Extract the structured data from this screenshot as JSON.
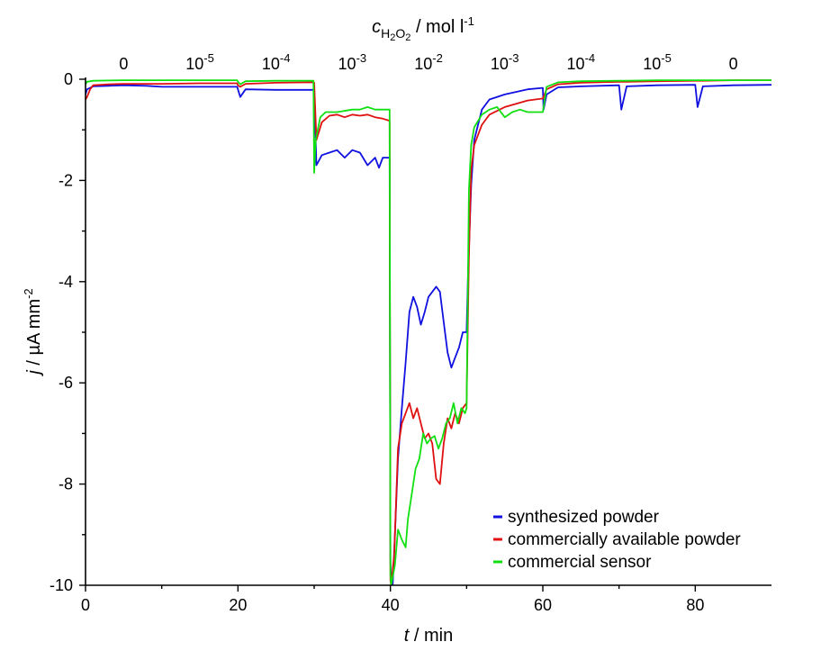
{
  "chart_data": {
    "type": "line",
    "top_axis_title": {
      "c": "c",
      "sub1": "H",
      "sub2": "2",
      "sub3": "O",
      "sub4": "2",
      "rest": " / mol l",
      "exp": "-1"
    },
    "concentration_labels": [
      {
        "x": 5,
        "base": "0",
        "exp": ""
      },
      {
        "x": 15,
        "base": "10",
        "exp": "-5"
      },
      {
        "x": 25,
        "base": "10",
        "exp": "-4"
      },
      {
        "x": 35,
        "base": "10",
        "exp": "-3"
      },
      {
        "x": 45,
        "base": "10",
        "exp": "-2"
      },
      {
        "x": 55,
        "base": "10",
        "exp": "-3"
      },
      {
        "x": 65,
        "base": "10",
        "exp": "-4"
      },
      {
        "x": 75,
        "base": "10",
        "exp": "-5"
      },
      {
        "x": 85,
        "base": "0",
        "exp": ""
      }
    ],
    "xlabel": {
      "var": "t",
      "unit": " / min"
    },
    "ylabel": {
      "var": "j",
      "unit": " / µA mm",
      "exp": "-2"
    },
    "xlim": [
      0,
      90
    ],
    "ylim": [
      -10,
      0
    ],
    "xticks": [
      0,
      20,
      40,
      60,
      80
    ],
    "yticks": [
      0,
      -2,
      -4,
      -6,
      -8,
      -10
    ],
    "legend_position": "bottom-right",
    "grid": false,
    "series": [
      {
        "name": "synthesized powder",
        "color": "#1010e0",
        "x": [
          0,
          0.2,
          1,
          3,
          5,
          8,
          10,
          15,
          19.9,
          20,
          20.3,
          21,
          25,
          29.9,
          30,
          30.3,
          31,
          32,
          33,
          34,
          35,
          36,
          37,
          38,
          38.5,
          39,
          39.9,
          40,
          40.1,
          40.3,
          40.6,
          41,
          41.5,
          42,
          42.5,
          43,
          43.5,
          44,
          44.5,
          45,
          46,
          46.5,
          47,
          47.5,
          48,
          48.5,
          49,
          49.5,
          50,
          50.2,
          50.6,
          51,
          52,
          53,
          55,
          58,
          60,
          60.1,
          60.5,
          62,
          65,
          70,
          70.3,
          71,
          75,
          80,
          80.3,
          81,
          85,
          90
        ],
        "y": [
          -0.3,
          -0.2,
          -0.14,
          -0.13,
          -0.12,
          -0.13,
          -0.15,
          -0.15,
          -0.15,
          -0.2,
          -0.35,
          -0.2,
          -0.21,
          -0.21,
          -0.22,
          -1.7,
          -1.5,
          -1.45,
          -1.4,
          -1.55,
          -1.4,
          -1.45,
          -1.7,
          -1.55,
          -1.75,
          -1.55,
          -1.55,
          -9.5,
          -10,
          -10,
          -9,
          -7.5,
          -6.5,
          -5.6,
          -4.6,
          -4.3,
          -4.5,
          -4.85,
          -4.6,
          -4.3,
          -4.1,
          -4.2,
          -4.8,
          -5.4,
          -5.7,
          -5.5,
          -5.3,
          -5.0,
          -5.0,
          -3.8,
          -2.1,
          -1.2,
          -0.6,
          -0.4,
          -0.3,
          -0.2,
          -0.17,
          -0.6,
          -0.3,
          -0.16,
          -0.14,
          -0.12,
          -0.6,
          -0.14,
          -0.12,
          -0.11,
          -0.55,
          -0.14,
          -0.12,
          -0.11
        ]
      },
      {
        "name": "commercially available powder",
        "color": "#e01010",
        "x": [
          0,
          0.2,
          0.6,
          1,
          3,
          5,
          8,
          10,
          15,
          19.9,
          20,
          20.3,
          21,
          25,
          29.9,
          30,
          30.3,
          31,
          32,
          33,
          34,
          35,
          36,
          37,
          38,
          39,
          39.9,
          40,
          40.1,
          40.5,
          41,
          41.5,
          42,
          42.5,
          43,
          43.5,
          44,
          44.5,
          45,
          45.5,
          46,
          46.5,
          47,
          47.5,
          48,
          48.5,
          49,
          49.5,
          50,
          50.3,
          50.6,
          51,
          52,
          53,
          55,
          58,
          60,
          60.5,
          62,
          65,
          70,
          71,
          75,
          80,
          81,
          85,
          90
        ],
        "y": [
          -0.4,
          -0.35,
          -0.2,
          -0.12,
          -0.1,
          -0.09,
          -0.09,
          -0.09,
          -0.08,
          -0.08,
          -0.12,
          -0.15,
          -0.09,
          -0.07,
          -0.06,
          -0.07,
          -1.2,
          -0.85,
          -0.72,
          -0.7,
          -0.75,
          -0.7,
          -0.72,
          -0.7,
          -0.75,
          -0.78,
          -0.82,
          -9.9,
          -10,
          -9.4,
          -7.3,
          -6.8,
          -6.6,
          -6.4,
          -6.7,
          -6.5,
          -6.8,
          -7.1,
          -7.0,
          -7.2,
          -7.9,
          -8.0,
          -7.2,
          -6.7,
          -6.9,
          -6.6,
          -6.8,
          -6.5,
          -6.4,
          -3.5,
          -1.8,
          -1.3,
          -0.9,
          -0.7,
          -0.55,
          -0.42,
          -0.38,
          -0.2,
          -0.1,
          -0.07,
          -0.05,
          -0.05,
          -0.04,
          -0.03,
          -0.03,
          -0.02,
          -0.02
        ]
      },
      {
        "name": "commercial sensor",
        "color": "#10e010",
        "x": [
          0,
          0.2,
          1,
          5,
          10,
          15,
          19.9,
          20,
          20.3,
          21,
          25,
          29.9,
          30,
          30.2,
          30.8,
          31.5,
          33,
          35,
          36,
          37,
          38,
          39,
          39.9,
          40,
          40.1,
          40.6,
          41,
          41.5,
          42,
          42.3,
          42.8,
          43.3,
          43.8,
          44.3,
          44.8,
          45.3,
          45.8,
          46.3,
          46.8,
          47.3,
          47.8,
          48.3,
          48.8,
          49.3,
          49.8,
          50,
          50.3,
          50.6,
          51,
          52,
          53,
          54,
          55,
          56,
          57,
          58,
          59,
          60,
          60.5,
          62,
          65,
          70,
          71,
          75,
          80,
          81,
          85,
          90
        ],
        "y": [
          -0.1,
          -0.05,
          -0.03,
          -0.02,
          -0.02,
          -0.02,
          -0.02,
          -0.05,
          -0.1,
          -0.04,
          -0.03,
          -0.03,
          -1.85,
          -1.2,
          -0.75,
          -0.65,
          -0.65,
          -0.6,
          -0.6,
          -0.55,
          -0.6,
          -0.6,
          -0.6,
          -9.8,
          -10,
          -9.6,
          -8.9,
          -9.1,
          -9.25,
          -8.7,
          -8.2,
          -7.7,
          -7.5,
          -7.0,
          -7.2,
          -7.1,
          -7.05,
          -7.3,
          -7.1,
          -6.8,
          -6.7,
          -6.4,
          -6.8,
          -6.5,
          -6.6,
          -6.5,
          -2.2,
          -1.3,
          -0.95,
          -0.7,
          -0.6,
          -0.55,
          -0.75,
          -0.65,
          -0.6,
          -0.65,
          -0.65,
          -0.65,
          -0.15,
          -0.06,
          -0.04,
          -0.03,
          -0.03,
          -0.02,
          -0.02,
          -0.02,
          -0.02,
          -0.02
        ]
      }
    ]
  }
}
